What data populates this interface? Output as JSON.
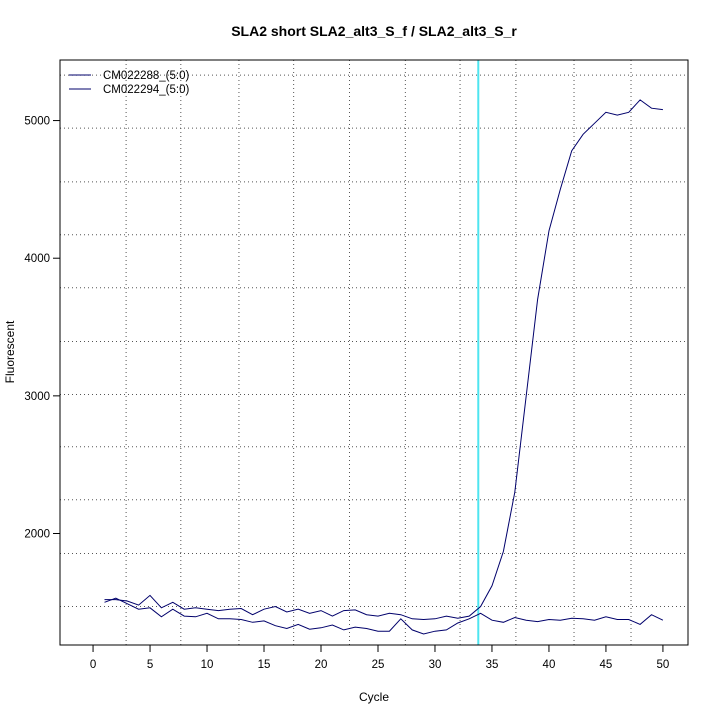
{
  "chart_data": {
    "type": "line",
    "title": "SLA2 short SLA2_alt3_S_f / SLA2_alt3_S_r",
    "xlabel": "Cycle",
    "ylabel": "Fluorescent",
    "xlim": [
      -2.9,
      52.2
    ],
    "ylim": [
      1190,
      5440
    ],
    "x_ticks": [
      0,
      5,
      10,
      15,
      20,
      25,
      30,
      35,
      40,
      45,
      50
    ],
    "y_ticks": [
      2000,
      3000,
      4000,
      5000
    ],
    "x_grid": [
      2.9,
      7.7,
      12.8,
      17.6,
      22.5,
      27.4,
      32.2,
      37.1,
      42.2,
      47.2
    ],
    "y_grid": [
      1470,
      1855,
      2245,
      2630,
      3010,
      3395,
      3785,
      4170,
      4555,
      4945,
      5330
    ],
    "threshold_x": 33.8,
    "threshold_color": "#4de5f0",
    "line_color": "#00006b",
    "grid": true,
    "legend_position": "top-left",
    "series": [
      {
        "name": "CM022288_(5:0)",
        "x": [
          1,
          2,
          3,
          4,
          5,
          6,
          7,
          8,
          9,
          10,
          11,
          12,
          13,
          14,
          15,
          16,
          17,
          18,
          19,
          20,
          21,
          22,
          23,
          24,
          25,
          26,
          27,
          28,
          29,
          30,
          31,
          32,
          33,
          34,
          35,
          36,
          37,
          38,
          39,
          40,
          41,
          42,
          43,
          44,
          45,
          46,
          47,
          48,
          49,
          50
        ],
        "values": [
          1520,
          1520,
          1510,
          1480,
          1550,
          1460,
          1500,
          1450,
          1460,
          1450,
          1440,
          1450,
          1455,
          1410,
          1450,
          1470,
          1430,
          1450,
          1420,
          1440,
          1400,
          1440,
          1445,
          1410,
          1400,
          1420,
          1410,
          1380,
          1375,
          1380,
          1400,
          1385,
          1400,
          1470,
          1620,
          1870,
          2300,
          3000,
          3700,
          4200,
          4500,
          4780,
          4900,
          4980,
          5060,
          5040,
          5060,
          5150,
          5090,
          5080
        ]
      },
      {
        "name": "CM022294_(5:0)",
        "x": [
          1,
          2,
          3,
          4,
          5,
          6,
          7,
          8,
          9,
          10,
          11,
          12,
          13,
          14,
          15,
          16,
          17,
          18,
          19,
          20,
          21,
          22,
          23,
          24,
          25,
          26,
          27,
          28,
          29,
          30,
          31,
          32,
          33,
          34,
          35,
          36,
          37,
          38,
          39,
          40,
          41,
          42,
          43,
          44,
          45,
          46,
          47,
          48,
          49,
          50
        ],
        "values": [
          1500,
          1530,
          1490,
          1450,
          1460,
          1395,
          1450,
          1400,
          1395,
          1420,
          1380,
          1380,
          1375,
          1355,
          1365,
          1330,
          1310,
          1340,
          1305,
          1315,
          1335,
          1300,
          1320,
          1310,
          1290,
          1290,
          1380,
          1300,
          1270,
          1290,
          1300,
          1350,
          1380,
          1420,
          1370,
          1355,
          1390,
          1370,
          1360,
          1375,
          1370,
          1385,
          1380,
          1370,
          1395,
          1375,
          1375,
          1340,
          1410,
          1370
        ]
      }
    ]
  }
}
